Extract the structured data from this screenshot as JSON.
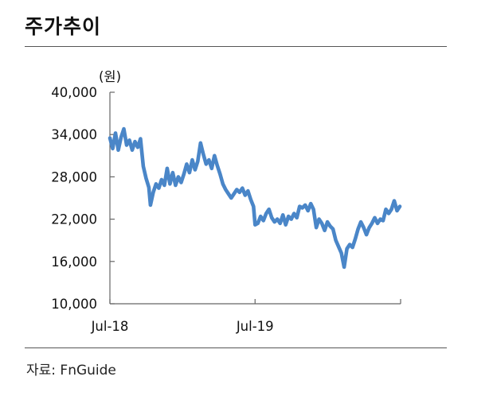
{
  "title": "주가추이",
  "source": "자료: FnGuide",
  "chart_data": {
    "type": "line",
    "title": "주가추이",
    "unit_label": "(원)",
    "xlabel": "",
    "ylabel": "",
    "ylim": [
      10000,
      40000
    ],
    "y_ticks": [
      {
        "value": 40000,
        "label": "40,000"
      },
      {
        "value": 34000,
        "label": "34,000"
      },
      {
        "value": 28000,
        "label": "28,000"
      },
      {
        "value": 22000,
        "label": "22,000"
      },
      {
        "value": 16000,
        "label": "16,000"
      },
      {
        "value": 10000,
        "label": "10,000"
      }
    ],
    "x_ticks": [
      {
        "date": "2018-07-01",
        "label": "Jul-18"
      },
      {
        "date": "2019-07-01",
        "label": "Jul-19"
      }
    ],
    "x_range": [
      "2018-07-01",
      "2020-07-01"
    ],
    "color": "#4a86c8",
    "grid": false,
    "series": [
      {
        "name": "",
        "points": [
          [
            "2018-07-01",
            33500
          ],
          [
            "2018-07-08",
            32000
          ],
          [
            "2018-07-15",
            34200
          ],
          [
            "2018-07-22",
            31800
          ],
          [
            "2018-07-29",
            33600
          ],
          [
            "2018-08-05",
            34800
          ],
          [
            "2018-08-12",
            32500
          ],
          [
            "2018-08-19",
            33200
          ],
          [
            "2018-08-26",
            31800
          ],
          [
            "2018-09-02",
            33000
          ],
          [
            "2018-09-09",
            32200
          ],
          [
            "2018-09-16",
            33400
          ],
          [
            "2018-09-23",
            29500
          ],
          [
            "2018-09-30",
            27800
          ],
          [
            "2018-10-07",
            26500
          ],
          [
            "2018-10-11",
            24000
          ],
          [
            "2018-10-18",
            25800
          ],
          [
            "2018-10-25",
            27000
          ],
          [
            "2018-11-01",
            26400
          ],
          [
            "2018-11-08",
            27600
          ],
          [
            "2018-11-15",
            26800
          ],
          [
            "2018-11-22",
            29200
          ],
          [
            "2018-11-29",
            27000
          ],
          [
            "2018-12-06",
            28600
          ],
          [
            "2018-12-13",
            26800
          ],
          [
            "2018-12-20",
            28000
          ],
          [
            "2018-12-27",
            27200
          ],
          [
            "2019-01-03",
            28400
          ],
          [
            "2019-01-10",
            29800
          ],
          [
            "2019-01-17",
            28600
          ],
          [
            "2019-01-24",
            30400
          ],
          [
            "2019-01-31",
            29000
          ],
          [
            "2019-02-07",
            30200
          ],
          [
            "2019-02-14",
            32800
          ],
          [
            "2019-02-21",
            31200
          ],
          [
            "2019-02-28",
            29800
          ],
          [
            "2019-03-07",
            30400
          ],
          [
            "2019-03-14",
            29200
          ],
          [
            "2019-03-21",
            31000
          ],
          [
            "2019-03-28",
            29600
          ],
          [
            "2019-04-04",
            28400
          ],
          [
            "2019-04-11",
            27000
          ],
          [
            "2019-04-18",
            26200
          ],
          [
            "2019-04-25",
            25600
          ],
          [
            "2019-05-02",
            25000
          ],
          [
            "2019-05-09",
            25600
          ],
          [
            "2019-05-16",
            26200
          ],
          [
            "2019-05-23",
            25800
          ],
          [
            "2019-05-30",
            26400
          ],
          [
            "2019-06-06",
            25400
          ],
          [
            "2019-06-13",
            26000
          ],
          [
            "2019-06-20",
            24800
          ],
          [
            "2019-06-27",
            23800
          ],
          [
            "2019-07-01",
            21200
          ],
          [
            "2019-07-08",
            21400
          ],
          [
            "2019-07-15",
            22400
          ],
          [
            "2019-07-22",
            21800
          ],
          [
            "2019-07-29",
            22800
          ],
          [
            "2019-08-05",
            23400
          ],
          [
            "2019-08-12",
            22200
          ],
          [
            "2019-08-19",
            21600
          ],
          [
            "2019-08-26",
            22000
          ],
          [
            "2019-09-02",
            21400
          ],
          [
            "2019-09-09",
            22600
          ],
          [
            "2019-09-16",
            21200
          ],
          [
            "2019-09-23",
            22400
          ],
          [
            "2019-09-30",
            22000
          ],
          [
            "2019-10-07",
            22800
          ],
          [
            "2019-10-14",
            22200
          ],
          [
            "2019-10-21",
            23800
          ],
          [
            "2019-10-28",
            23600
          ],
          [
            "2019-11-04",
            24000
          ],
          [
            "2019-11-11",
            23200
          ],
          [
            "2019-11-18",
            24200
          ],
          [
            "2019-11-25",
            23400
          ],
          [
            "2019-12-02",
            20800
          ],
          [
            "2019-12-09",
            22000
          ],
          [
            "2019-12-16",
            21400
          ],
          [
            "2019-12-23",
            20400
          ],
          [
            "2019-12-30",
            21600
          ],
          [
            "2020-01-06",
            21000
          ],
          [
            "2020-01-13",
            20600
          ],
          [
            "2020-01-20",
            19000
          ],
          [
            "2020-02-03",
            17200
          ],
          [
            "2020-02-10",
            15200
          ],
          [
            "2020-02-17",
            17800
          ],
          [
            "2020-02-24",
            18400
          ],
          [
            "2020-03-02",
            18000
          ],
          [
            "2020-03-09",
            19200
          ],
          [
            "2020-03-16",
            20600
          ],
          [
            "2020-03-23",
            21600
          ],
          [
            "2020-03-30",
            20800
          ],
          [
            "2020-04-06",
            19800
          ],
          [
            "2020-04-13",
            20800
          ],
          [
            "2020-04-20",
            21400
          ],
          [
            "2020-04-27",
            22200
          ],
          [
            "2020-05-04",
            21400
          ],
          [
            "2020-05-11",
            22000
          ],
          [
            "2020-05-18",
            21800
          ],
          [
            "2020-05-25",
            23400
          ],
          [
            "2020-06-01",
            22800
          ],
          [
            "2020-06-08",
            23400
          ],
          [
            "2020-06-15",
            24600
          ],
          [
            "2020-06-22",
            23200
          ],
          [
            "2020-06-29",
            23800
          ]
        ]
      }
    ]
  }
}
